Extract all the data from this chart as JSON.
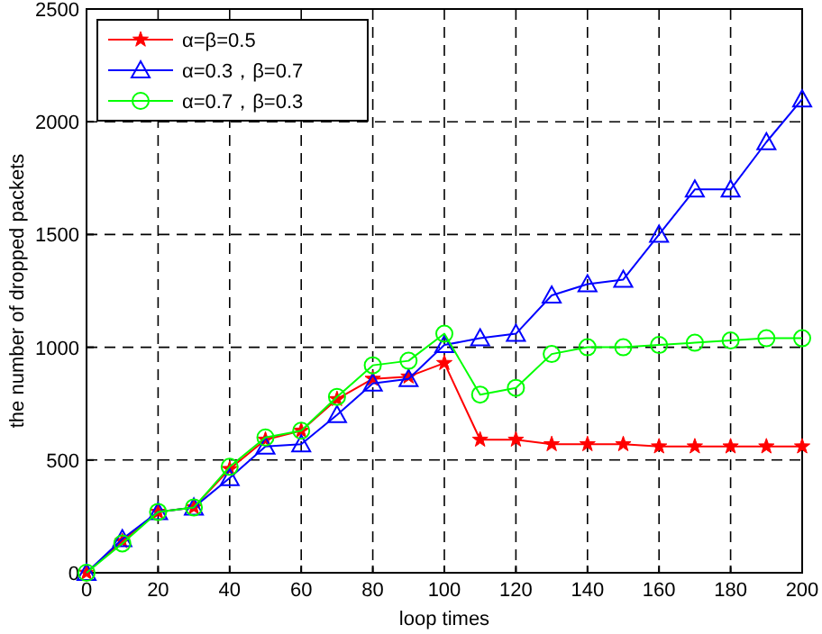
{
  "chart_data": {
    "type": "line",
    "xlabel": "loop times",
    "ylabel": "the number of dropped packets",
    "x": [
      0,
      10,
      20,
      30,
      40,
      50,
      60,
      70,
      80,
      90,
      100,
      110,
      120,
      130,
      140,
      150,
      160,
      170,
      180,
      190,
      200
    ],
    "series": [
      {
        "name": "α=β=0.5",
        "color": "#ff0000",
        "marker": "star",
        "values": [
          0,
          140,
          270,
          290,
          460,
          590,
          630,
          770,
          860,
          870,
          930,
          590,
          590,
          570,
          570,
          570,
          560,
          560,
          560,
          560,
          560
        ]
      },
      {
        "name": "α=0.3，β=0.7",
        "color": "#0000ff",
        "marker": "triangle",
        "values": [
          0,
          150,
          270,
          290,
          420,
          560,
          570,
          700,
          840,
          860,
          1010,
          1040,
          1060,
          1230,
          1280,
          1300,
          1500,
          1700,
          1700,
          1910,
          2100
        ]
      },
      {
        "name": "α=0.7，β=0.3",
        "color": "#00ff00",
        "marker": "circle",
        "values": [
          0,
          130,
          270,
          290,
          470,
          600,
          630,
          780,
          920,
          940,
          1060,
          790,
          820,
          970,
          1000,
          1000,
          1010,
          1020,
          1030,
          1040,
          1040
        ]
      }
    ],
    "xlim": [
      0,
      200
    ],
    "xticks": [
      0,
      20,
      40,
      60,
      80,
      100,
      120,
      140,
      160,
      180,
      200
    ],
    "ylim": [
      0,
      2500
    ],
    "yticks": [
      0,
      500,
      1000,
      1500,
      2000,
      2500
    ],
    "grid": true,
    "legend": "top left",
    "line_style": "solid"
  }
}
